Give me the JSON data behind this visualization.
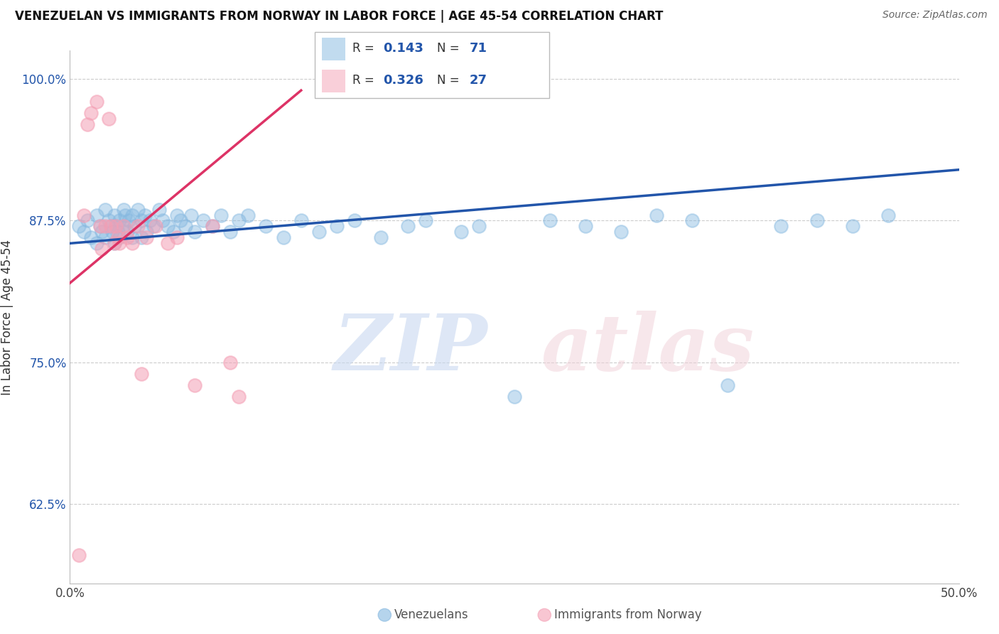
{
  "title": "VENEZUELAN VS IMMIGRANTS FROM NORWAY IN LABOR FORCE | AGE 45-54 CORRELATION CHART",
  "source": "Source: ZipAtlas.com",
  "ylabel": "In Labor Force | Age 45-54",
  "xlim": [
    0.0,
    0.5
  ],
  "ylim": [
    0.555,
    1.025
  ],
  "xticks": [
    0.0,
    0.1,
    0.2,
    0.3,
    0.4,
    0.5
  ],
  "xticklabels": [
    "0.0%",
    "",
    "",
    "",
    "",
    "50.0%"
  ],
  "yticks": [
    0.625,
    0.75,
    0.875,
    1.0
  ],
  "yticklabels": [
    "62.5%",
    "75.0%",
    "87.5%",
    "100.0%"
  ],
  "blue_R": 0.143,
  "blue_N": 71,
  "pink_R": 0.326,
  "pink_N": 27,
  "blue_color": "#85b8e0",
  "pink_color": "#f4a0b5",
  "blue_line_color": "#2255aa",
  "pink_line_color": "#dd3366",
  "legend_blue_label": "Venezuelans",
  "legend_pink_label": "Immigrants from Norway",
  "blue_x": [
    0.005,
    0.008,
    0.01,
    0.012,
    0.015,
    0.015,
    0.017,
    0.018,
    0.02,
    0.02,
    0.022,
    0.023,
    0.024,
    0.025,
    0.025,
    0.026,
    0.027,
    0.028,
    0.028,
    0.03,
    0.03,
    0.031,
    0.032,
    0.033,
    0.035,
    0.035,
    0.036,
    0.038,
    0.04,
    0.04,
    0.042,
    0.043,
    0.045,
    0.047,
    0.05,
    0.052,
    0.055,
    0.058,
    0.06,
    0.062,
    0.065,
    0.068,
    0.07,
    0.075,
    0.08,
    0.085,
    0.09,
    0.095,
    0.1,
    0.11,
    0.12,
    0.13,
    0.14,
    0.15,
    0.16,
    0.175,
    0.19,
    0.2,
    0.22,
    0.23,
    0.25,
    0.27,
    0.29,
    0.31,
    0.33,
    0.35,
    0.37,
    0.4,
    0.42,
    0.44,
    0.46
  ],
  "blue_y": [
    0.87,
    0.865,
    0.875,
    0.86,
    0.88,
    0.855,
    0.87,
    0.865,
    0.885,
    0.86,
    0.875,
    0.87,
    0.865,
    0.88,
    0.855,
    0.87,
    0.865,
    0.875,
    0.86,
    0.885,
    0.87,
    0.88,
    0.865,
    0.875,
    0.88,
    0.86,
    0.87,
    0.885,
    0.875,
    0.86,
    0.88,
    0.865,
    0.875,
    0.87,
    0.885,
    0.875,
    0.87,
    0.865,
    0.88,
    0.875,
    0.87,
    0.88,
    0.865,
    0.875,
    0.87,
    0.88,
    0.865,
    0.875,
    0.88,
    0.87,
    0.86,
    0.875,
    0.865,
    0.87,
    0.875,
    0.86,
    0.87,
    0.875,
    0.865,
    0.87,
    0.72,
    0.875,
    0.87,
    0.865,
    0.88,
    0.875,
    0.73,
    0.87,
    0.875,
    0.87,
    0.88
  ],
  "pink_x": [
    0.005,
    0.008,
    0.01,
    0.012,
    0.015,
    0.017,
    0.018,
    0.02,
    0.022,
    0.023,
    0.025,
    0.026,
    0.027,
    0.028,
    0.03,
    0.032,
    0.035,
    0.038,
    0.04,
    0.043,
    0.048,
    0.055,
    0.06,
    0.07,
    0.08,
    0.09,
    0.095
  ],
  "pink_y": [
    0.58,
    0.88,
    0.96,
    0.97,
    0.98,
    0.87,
    0.85,
    0.87,
    0.965,
    0.87,
    0.855,
    0.87,
    0.86,
    0.855,
    0.87,
    0.86,
    0.855,
    0.87,
    0.74,
    0.86,
    0.87,
    0.855,
    0.86,
    0.73,
    0.87,
    0.75,
    0.72
  ],
  "blue_trend_x": [
    0.0,
    0.5
  ],
  "blue_trend_y": [
    0.855,
    0.92
  ],
  "pink_trend_x": [
    0.0,
    0.13
  ],
  "pink_trend_y": [
    0.82,
    0.99
  ]
}
